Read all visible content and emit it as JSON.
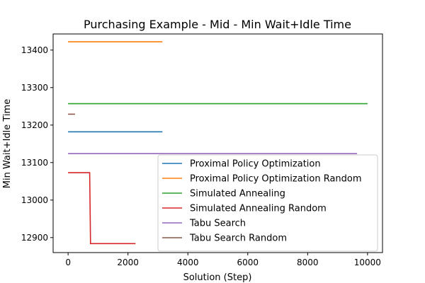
{
  "chart_data": {
    "type": "line",
    "title": "Purchasing Example - Mid - Min Wait+Idle Time",
    "xlabel": "Solution (Step)",
    "ylabel": "Min Wait+Idle Time",
    "xlim": [
      -500,
      10500
    ],
    "ylim": [
      12860,
      13443
    ],
    "xticks": [
      0,
      2000,
      4000,
      6000,
      8000,
      10000
    ],
    "yticks": [
      12900,
      13000,
      13100,
      13200,
      13300,
      13400
    ],
    "grid": false,
    "legend_position": "lower-right",
    "series": [
      {
        "name": "Proximal Policy Optimization",
        "color": "#1f77b4",
        "points": [
          [
            0,
            13182
          ],
          [
            3150,
            13182
          ]
        ]
      },
      {
        "name": "Proximal Policy Optimization Random",
        "color": "#ff7f0e",
        "points": [
          [
            0,
            13422
          ],
          [
            3150,
            13422
          ]
        ]
      },
      {
        "name": "Simulated Annealing",
        "color": "#2ca02c",
        "points": [
          [
            0,
            13257
          ],
          [
            10000,
            13257
          ]
        ]
      },
      {
        "name": "Simulated Annealing Random",
        "color": "#d62728",
        "points": [
          [
            0,
            13073
          ],
          [
            720,
            13073
          ],
          [
            750,
            12884
          ],
          [
            2250,
            12884
          ]
        ]
      },
      {
        "name": "Tabu Search",
        "color": "#9467bd",
        "points": [
          [
            0,
            13124
          ],
          [
            9650,
            13124
          ]
        ]
      },
      {
        "name": "Tabu Search Random",
        "color": "#8c564b",
        "points": [
          [
            0,
            13229
          ],
          [
            230,
            13229
          ]
        ]
      }
    ]
  }
}
